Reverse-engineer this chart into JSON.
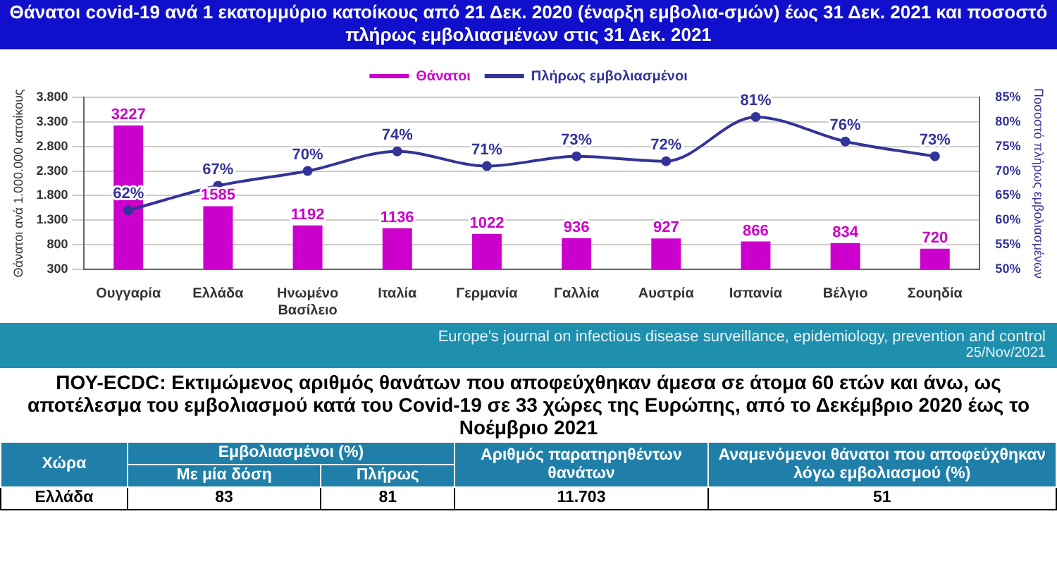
{
  "chart_data": [
    {
      "type": "bar",
      "title": "Θάνατοι covid-19 ανά 1 εκατομμύριο κατοίκους από 21 Δεκ. 2020 (έναρξη εμβολια-σμών) έως 31 Δεκ. 2021 και ποσοστό  πλήρως  εμβολιασμένων στις  31 Δεκ. 2021",
      "ylabel": "Θάνατοι ανά 1.000.000 κατοίκους",
      "y2label": "Ποσοστό πλήρως εμβολιασμένων",
      "categories": [
        "Ουγγαρία",
        "Ελλάδα",
        "Ηνωμένο Βασίλειο",
        "Ιταλία",
        "Γερμανία",
        "Γαλλία",
        "Αυστρία",
        "Ισπανία",
        "Βέλγιο",
        "Σουηδία"
      ],
      "series": [
        {
          "name": "Θάνατοι",
          "type": "bar",
          "color": "#cc00cc",
          "values": [
            3227,
            1585,
            1192,
            1136,
            1022,
            936,
            927,
            866,
            834,
            720
          ],
          "value_labels": [
            "3227",
            "1585",
            "1192",
            "1136",
            "1022",
            "936",
            "927",
            "866",
            "834",
            "720"
          ]
        },
        {
          "name": "Πλήρως εμβολιασμένοι",
          "type": "line",
          "axis": "y2",
          "color": "#333399",
          "values": [
            62,
            67,
            70,
            74,
            71,
            73,
            72,
            81,
            76,
            73
          ],
          "value_labels": [
            "62%",
            "67%",
            "70%",
            "74%",
            "71%",
            "73%",
            "72%",
            "81%",
            "76%",
            "73%"
          ]
        }
      ],
      "ylim": [
        300,
        3800
      ],
      "yticks": [
        {
          "value": 300,
          "label": "300"
        },
        {
          "value": 800,
          "label": "800"
        },
        {
          "value": 1300,
          "label": "1.300"
        },
        {
          "value": 1800,
          "label": "1.800"
        },
        {
          "value": 2300,
          "label": "2.300"
        },
        {
          "value": 2800,
          "label": "2.800"
        },
        {
          "value": 3300,
          "label": "3.300"
        },
        {
          "value": 3800,
          "label": "3.800"
        }
      ],
      "y2lim": [
        50,
        85
      ],
      "y2ticks": [
        {
          "value": 50,
          "label": "50%"
        },
        {
          "value": 55,
          "label": "55%"
        },
        {
          "value": 60,
          "label": "60%"
        },
        {
          "value": 65,
          "label": "65%"
        },
        {
          "value": 70,
          "label": "70%"
        },
        {
          "value": 75,
          "label": "75%"
        },
        {
          "value": 80,
          "label": "80%"
        },
        {
          "value": 85,
          "label": "85%"
        }
      ],
      "grid": "y",
      "legend": "top",
      "marker": "circle"
    },
    {
      "type": "other",
      "title": "ΠΟΥ-ECDC: Εκτιμώμενος αριθμός θανάτων που αποφεύχθηκαν άμεσα σε άτομα 60 ετών και άνω, ως αποτέλεσμα του εμβολιασμού κατά του Covid-19 σε 33 χώρες της Ευρώπης, από το Δεκέμβριο 2020 έως το Νοέμβριο 2021",
      "annotations": [
        "Europe's journal on infectious disease surveillance, epidemiology, prevention and control",
        "25/Nov/2021",
        "Χώρα",
        "Εμβολιασμένοι (%)",
        "Αριθμός παρατηρηθέντων θανάτων",
        "Αναμενόμενοι θάνατοι που αποφεύχθηκαν λόγω εμβολιασμού (%)",
        "Με μία δόση",
        "Πλήρως",
        "Ελλάδα",
        "83",
        "81",
        "11.703",
        "51"
      ]
    }
  ]
}
